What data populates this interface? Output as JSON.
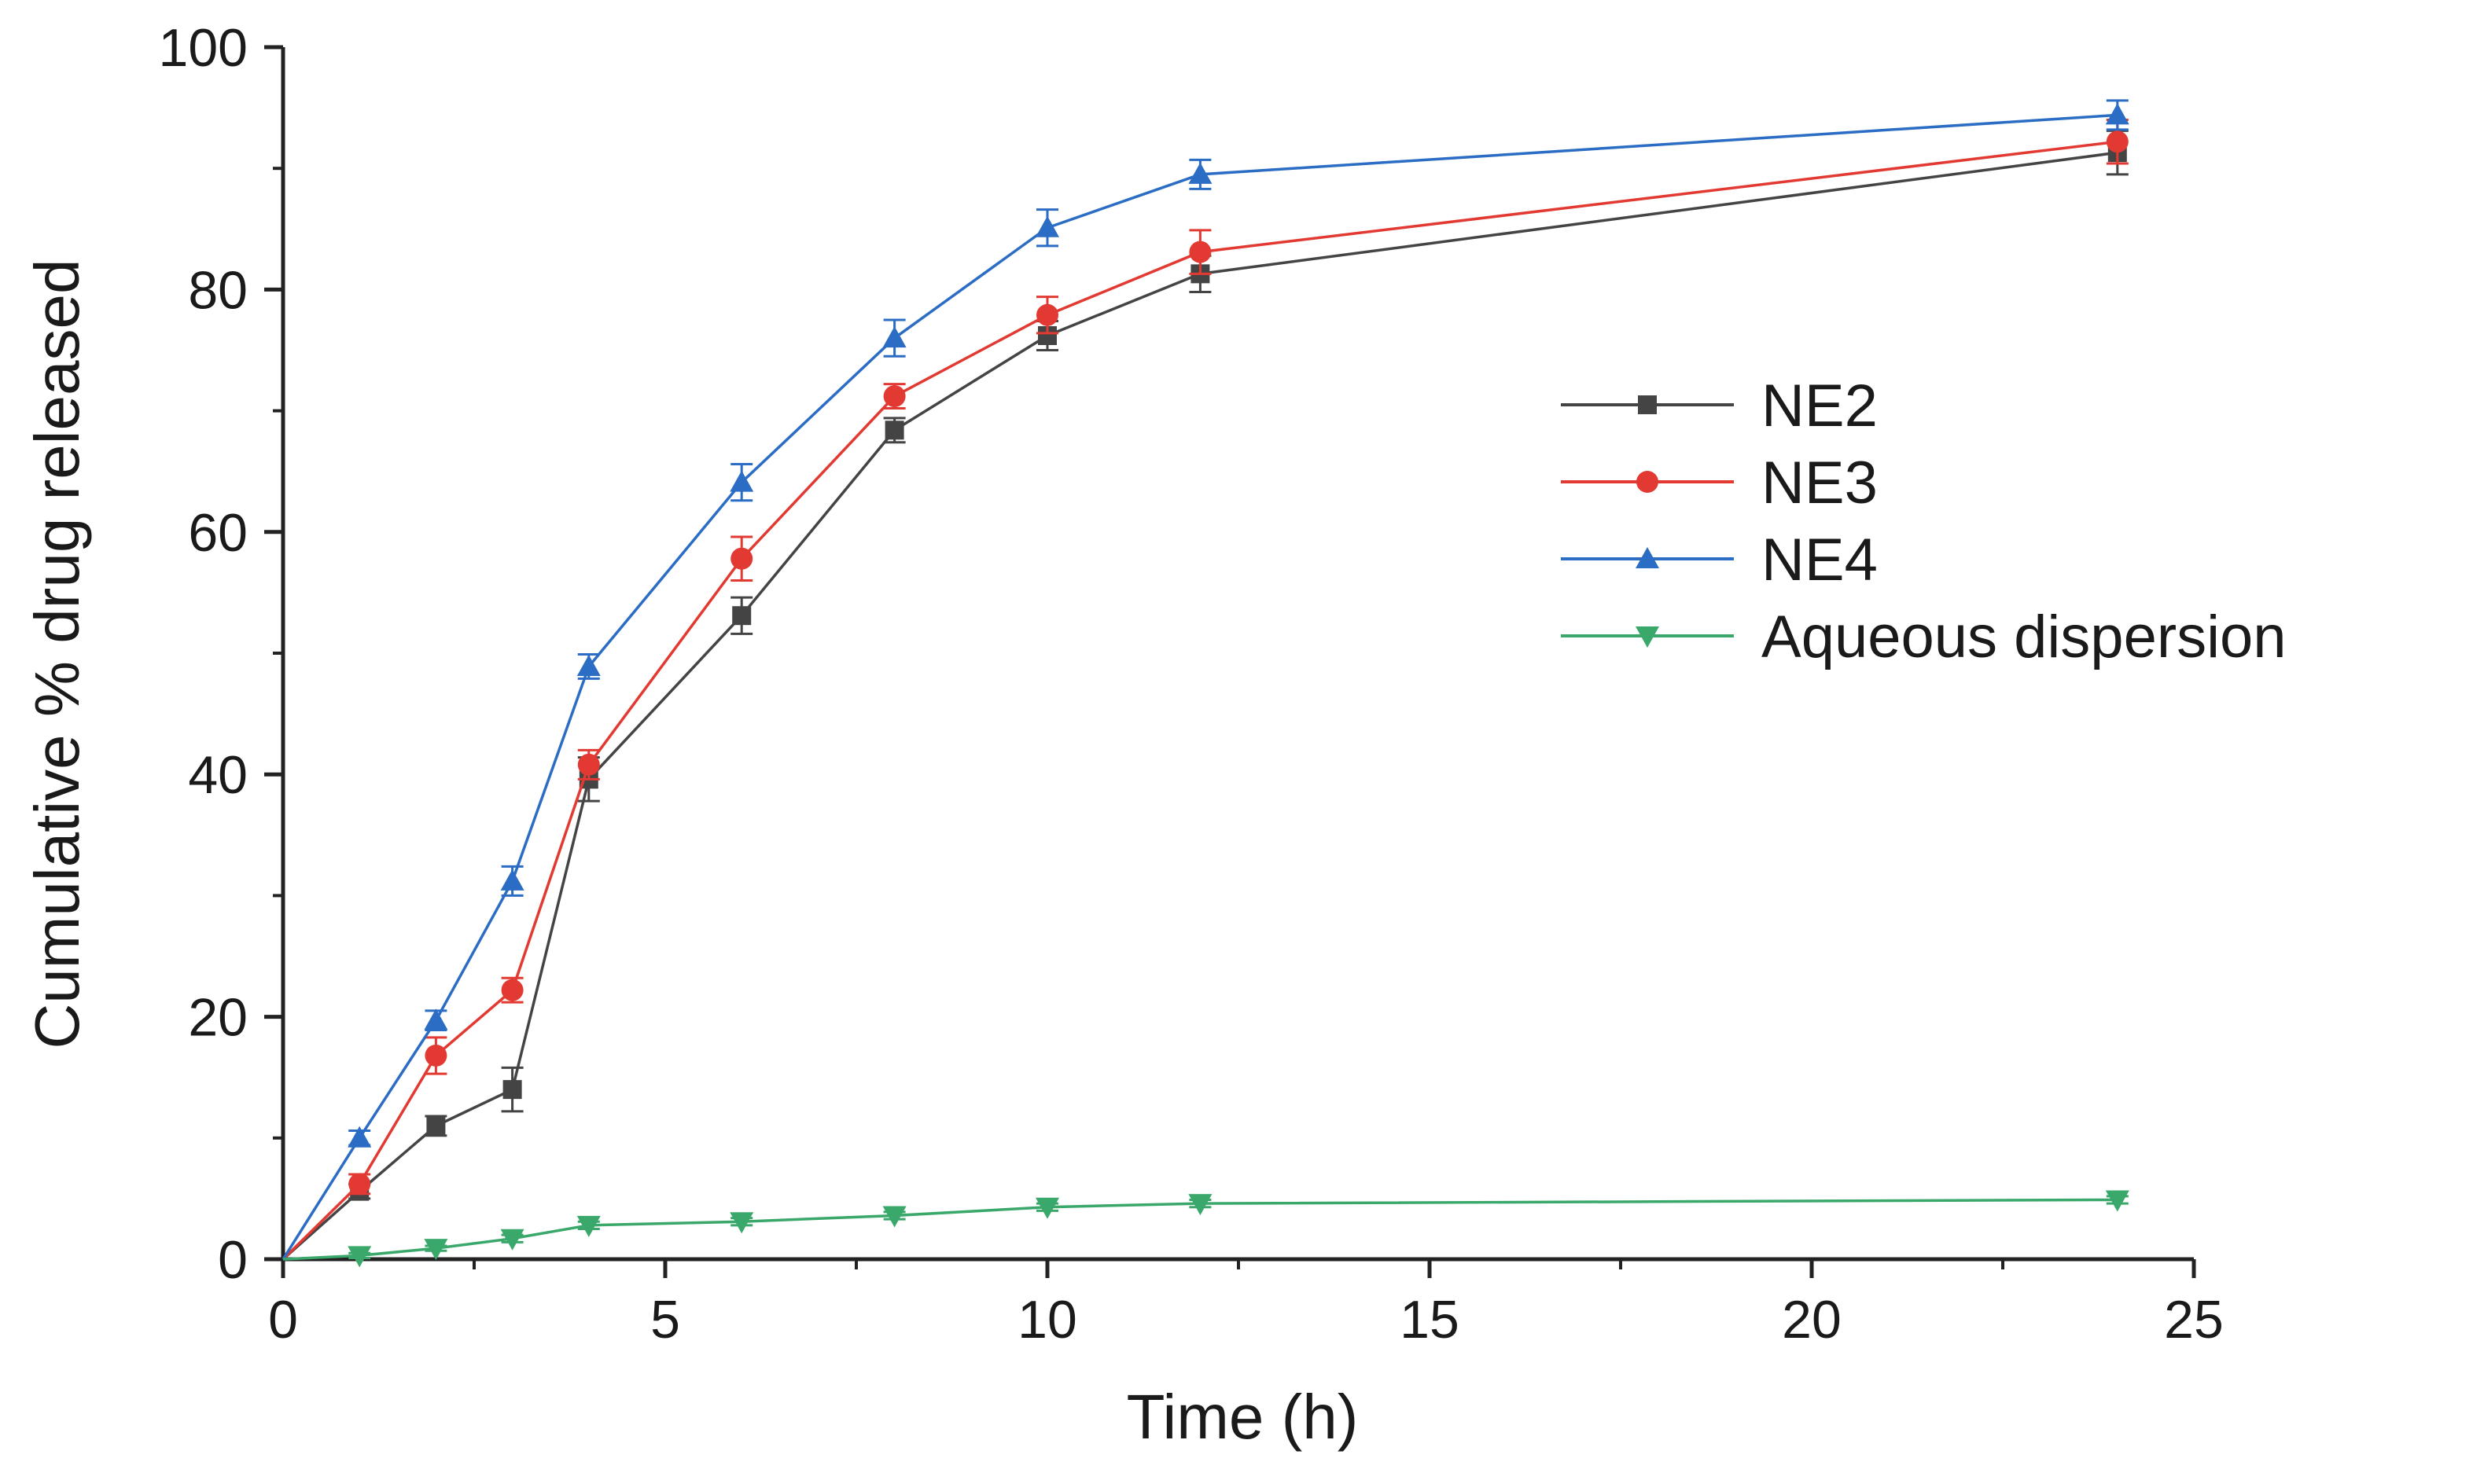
{
  "chart_data": {
    "type": "line",
    "title": "",
    "xlabel": "Time (h)",
    "ylabel": "Cumulative % drug released",
    "xlim": [
      0,
      25
    ],
    "ylim": [
      0,
      100
    ],
    "xticks": [
      0,
      5,
      10,
      15,
      20,
      25
    ],
    "yticks": [
      0,
      20,
      40,
      60,
      80,
      100
    ],
    "grid": false,
    "legend_position": "center-right",
    "x": [
      0,
      1,
      2,
      3,
      4,
      6,
      8,
      10,
      12,
      24
    ],
    "series": [
      {
        "name": "NE2",
        "color": "#444444",
        "marker": "square",
        "values": [
          0,
          5.6,
          11.0,
          14.0,
          39.6,
          53.1,
          68.4,
          76.2,
          81.3,
          91.3
        ],
        "errors": [
          0,
          0.6,
          0.8,
          1.8,
          1.8,
          1.5,
          1.0,
          1.2,
          1.5,
          1.8
        ]
      },
      {
        "name": "NE3",
        "color": "#e23a32",
        "marker": "circle",
        "values": [
          0,
          6.2,
          16.8,
          22.2,
          40.8,
          57.8,
          71.2,
          77.9,
          83.1,
          92.2
        ],
        "errors": [
          0,
          0.8,
          1.5,
          1.0,
          1.2,
          1.8,
          1.0,
          1.5,
          1.8,
          1.8
        ]
      },
      {
        "name": "NE4",
        "color": "#2b6cc4",
        "marker": "triangle-up",
        "values": [
          0,
          10.0,
          19.7,
          31.2,
          48.9,
          64.1,
          76.0,
          85.1,
          89.5,
          94.4
        ],
        "errors": [
          0,
          0.6,
          0.8,
          1.2,
          1.0,
          1.5,
          1.5,
          1.5,
          1.2,
          1.2
        ]
      },
      {
        "name": "Aqueous dispersion",
        "color": "#3aa86b",
        "marker": "triangle-down",
        "values": [
          0,
          0.3,
          0.9,
          1.7,
          2.8,
          3.1,
          3.6,
          4.3,
          4.6,
          4.9
        ],
        "errors": [
          0,
          0.2,
          0.2,
          0.3,
          0.3,
          0.3,
          0.3,
          0.3,
          0.3,
          0.3
        ]
      }
    ]
  }
}
